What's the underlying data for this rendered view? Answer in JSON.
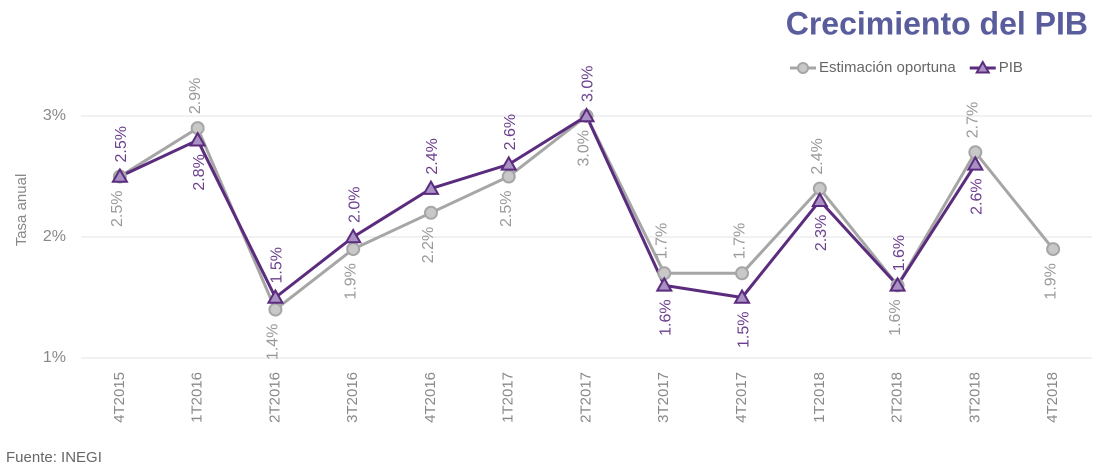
{
  "chart_data": {
    "type": "line",
    "title": "Crecimiento del PIB",
    "y_label": "Tasa anual",
    "source": "Fuente: INEGI",
    "categories": [
      "4T2015",
      "1T2016",
      "2T2016",
      "3T2016",
      "4T2016",
      "1T2017",
      "2T2017",
      "3T2017",
      "4T2017",
      "1T2018",
      "2T2018",
      "3T2018",
      "4T2018"
    ],
    "series": [
      {
        "name": "Estimación oportuna",
        "color": "#a6a6a6",
        "marker": "circle",
        "values": [
          2.5,
          2.9,
          1.4,
          1.9,
          2.2,
          2.5,
          3.0,
          1.7,
          1.7,
          2.4,
          1.6,
          2.7,
          1.9
        ],
        "value_labels": [
          "2.5%",
          "2.9%",
          "1.4%",
          "1.9%",
          "2.2%",
          "2.5%",
          "3.0%",
          "1.7%",
          "1.7%",
          "2.4%",
          "1.6%",
          "2.7%",
          "1.9%"
        ]
      },
      {
        "name": "PIB",
        "color": "#5b2c7e",
        "marker": "triangle",
        "values": [
          2.5,
          2.8,
          1.5,
          2.0,
          2.4,
          2.6,
          3.0,
          1.6,
          1.5,
          2.3,
          1.6,
          2.6,
          null
        ],
        "value_labels": [
          "2.5%",
          "2.8%",
          "1.5%",
          "2.0%",
          "2.4%",
          "2.6%",
          "3.0%",
          "1.6%",
          "1.5%",
          "2.3%",
          "1.6%",
          "2.6%",
          null
        ]
      }
    ],
    "ylim": [
      1,
      3
    ],
    "yticks": [
      {
        "value": 1,
        "label": "1%"
      },
      {
        "value": 2,
        "label": "2%"
      },
      {
        "value": 3,
        "label": "3%"
      }
    ],
    "grid": true,
    "legend": "top-right"
  }
}
